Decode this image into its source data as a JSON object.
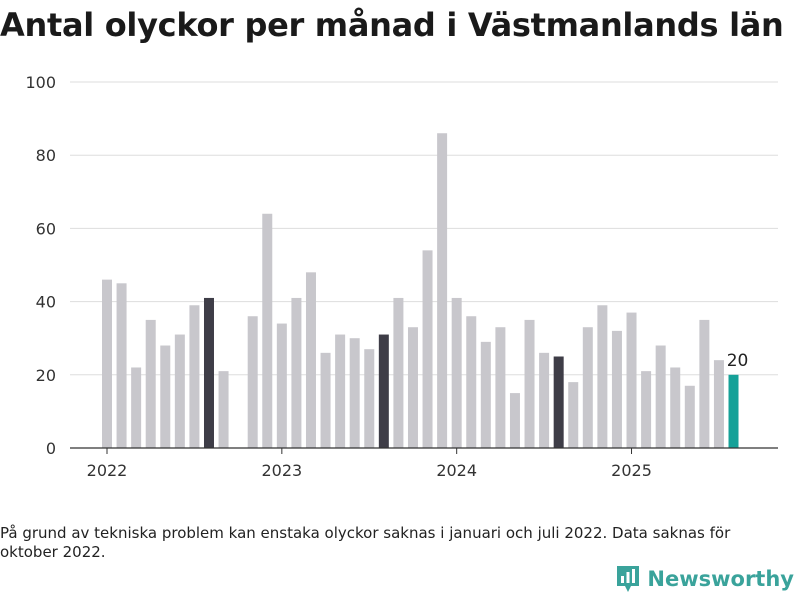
{
  "title": "Antal olyckor per månad i Västmanlands län",
  "footnote": "På grund av tekniska problem kan enstaka olyckor saknas i januari och juli 2022. Data saknas för oktober 2022.",
  "brand": {
    "name": "Newsworthy",
    "icon": "newsworthy-logo-icon",
    "color": "#3aa39b"
  },
  "colors": {
    "bar": "#c8c7cc",
    "highlight": "#3e3d47",
    "latest": "#15a198",
    "grid": "#dddddd",
    "axis": "#333333"
  },
  "chart_data": {
    "type": "bar",
    "title": "Antal olyckor per månad i Västmanlands län",
    "xlabel": "",
    "ylabel": "",
    "ylim": [
      0,
      100
    ],
    "yticks": [
      0,
      20,
      40,
      60,
      80,
      100
    ],
    "xticks": [
      {
        "label": "2022",
        "category": "2022-01"
      },
      {
        "label": "2023",
        "category": "2023-01"
      },
      {
        "label": "2024",
        "category": "2024-01"
      },
      {
        "label": "2025",
        "category": "2025-01"
      }
    ],
    "grid": true,
    "categories": [
      "2022-01",
      "2022-02",
      "2022-03",
      "2022-04",
      "2022-05",
      "2022-06",
      "2022-07",
      "2022-08",
      "2022-09",
      "2022-10",
      "2022-11",
      "2022-12",
      "2023-01",
      "2023-02",
      "2023-03",
      "2023-04",
      "2023-05",
      "2023-06",
      "2023-07",
      "2023-08",
      "2023-09",
      "2023-10",
      "2023-11",
      "2023-12",
      "2024-01",
      "2024-02",
      "2024-03",
      "2024-04",
      "2024-05",
      "2024-06",
      "2024-07",
      "2024-08",
      "2024-09",
      "2024-10",
      "2024-11",
      "2024-12",
      "2025-01",
      "2025-02",
      "2025-03",
      "2025-04",
      "2025-05",
      "2025-06",
      "2025-07",
      "2025-08"
    ],
    "values": [
      46,
      45,
      22,
      35,
      28,
      31,
      39,
      41,
      21,
      null,
      36,
      64,
      34,
      41,
      48,
      26,
      31,
      30,
      27,
      31,
      41,
      33,
      54,
      86,
      41,
      36,
      29,
      33,
      15,
      35,
      26,
      25,
      18,
      33,
      39,
      32,
      37,
      21,
      28,
      22,
      17,
      35,
      24,
      20
    ],
    "highlighted": [
      "2022-08",
      "2023-08",
      "2024-08"
    ],
    "latest": "2025-08",
    "data_labels": [
      {
        "category": "2025-08",
        "text": "20"
      }
    ]
  }
}
